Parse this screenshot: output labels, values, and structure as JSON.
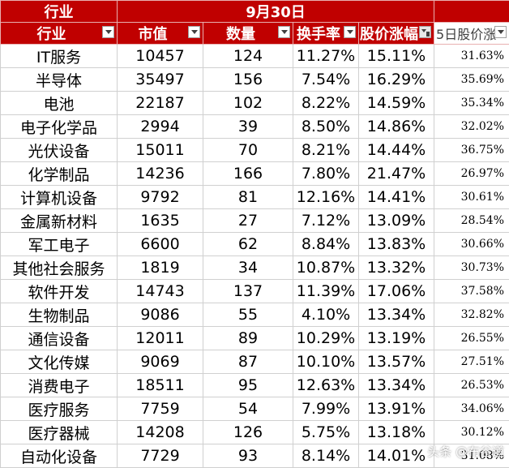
{
  "header": {
    "group_left": "行业",
    "group_date": "9月30日",
    "columns": [
      {
        "label": "行业",
        "filter": "normal"
      },
      {
        "label": "市值",
        "filter": "normal"
      },
      {
        "label": "数量",
        "filter": "normal"
      },
      {
        "label": "换手率",
        "filter": "normal"
      },
      {
        "label": "股价涨幅",
        "filter": "active"
      },
      {
        "label": "5日股价涨",
        "filter": "normal"
      }
    ]
  },
  "rows": [
    {
      "industry": "IT服务",
      "market_cap": "10457",
      "count": "124",
      "turnover": "11.27%",
      "gain": "15.11%",
      "gain5d": "31.63%"
    },
    {
      "industry": "半导体",
      "market_cap": "35497",
      "count": "156",
      "turnover": "7.54%",
      "gain": "16.29%",
      "gain5d": "35.69%"
    },
    {
      "industry": "电池",
      "market_cap": "22187",
      "count": "102",
      "turnover": "8.22%",
      "gain": "14.59%",
      "gain5d": "35.34%"
    },
    {
      "industry": "电子化学品",
      "market_cap": "2994",
      "count": "39",
      "turnover": "8.50%",
      "gain": "14.86%",
      "gain5d": "32.02%"
    },
    {
      "industry": "光伏设备",
      "market_cap": "15011",
      "count": "70",
      "turnover": "8.21%",
      "gain": "14.44%",
      "gain5d": "36.75%"
    },
    {
      "industry": "化学制品",
      "market_cap": "14236",
      "count": "166",
      "turnover": "7.80%",
      "gain": "21.47%",
      "gain5d": "26.97%"
    },
    {
      "industry": "计算机设备",
      "market_cap": "9792",
      "count": "81",
      "turnover": "12.16%",
      "gain": "14.41%",
      "gain5d": "30.61%"
    },
    {
      "industry": "金属新材料",
      "market_cap": "1635",
      "count": "27",
      "turnover": "7.12%",
      "gain": "13.09%",
      "gain5d": "28.54%"
    },
    {
      "industry": "军工电子",
      "market_cap": "6600",
      "count": "62",
      "turnover": "8.84%",
      "gain": "13.83%",
      "gain5d": "30.66%"
    },
    {
      "industry": "其他社会服务",
      "market_cap": "1819",
      "count": "34",
      "turnover": "10.87%",
      "gain": "13.32%",
      "gain5d": "30.73%"
    },
    {
      "industry": "软件开发",
      "market_cap": "14743",
      "count": "137",
      "turnover": "11.39%",
      "gain": "17.06%",
      "gain5d": "37.58%"
    },
    {
      "industry": "生物制品",
      "market_cap": "9086",
      "count": "55",
      "turnover": "4.10%",
      "gain": "13.34%",
      "gain5d": "32.82%"
    },
    {
      "industry": "通信设备",
      "market_cap": "12011",
      "count": "89",
      "turnover": "10.29%",
      "gain": "13.19%",
      "gain5d": "26.55%"
    },
    {
      "industry": "文化传媒",
      "market_cap": "9069",
      "count": "87",
      "turnover": "10.10%",
      "gain": "13.57%",
      "gain5d": "27.51%"
    },
    {
      "industry": "消费电子",
      "market_cap": "18511",
      "count": "95",
      "turnover": "12.63%",
      "gain": "13.34%",
      "gain5d": "26.53%"
    },
    {
      "industry": "医疗服务",
      "market_cap": "7759",
      "count": "54",
      "turnover": "7.99%",
      "gain": "13.91%",
      "gain5d": "34.06%"
    },
    {
      "industry": "医疗器械",
      "market_cap": "14208",
      "count": "126",
      "turnover": "5.75%",
      "gain": "13.18%",
      "gain5d": "30.12%"
    },
    {
      "industry": "自动化设备",
      "market_cap": "7729",
      "count": "93",
      "turnover": "8.14%",
      "gain": "14.01%",
      "gain5d": "31.08%"
    }
  ],
  "watermark": "头条 @布谷道",
  "colors": {
    "header_bg": "#c00000",
    "header_text": "#ffffff"
  }
}
